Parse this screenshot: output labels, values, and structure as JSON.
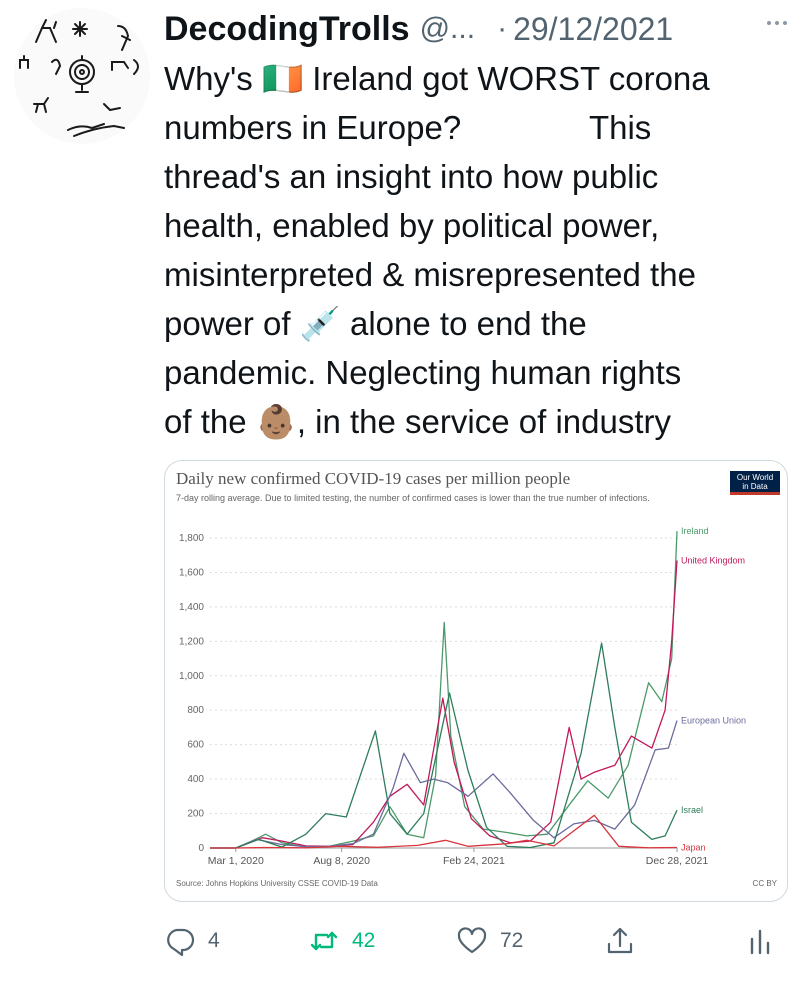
{
  "tweet": {
    "display_name": "DecodingTrolls",
    "handle": "@...",
    "separator": "·",
    "date": "29/12/2021",
    "text_lines": [
      "Why's 🇮🇪 Ireland got WORST corona",
      "numbers in Europe?              This",
      "thread's an insight into how public",
      "health, enabled by political power,",
      "misinterpreted & misrepresented the",
      "power of 💉 alone to end the",
      "pandemic. Neglecting human rights",
      "of the 👶🏽, in the service of industry"
    ]
  },
  "actions": {
    "reply_count": "4",
    "retweet_count": "42",
    "like_count": "72"
  },
  "icons": {
    "reply": "reply-icon",
    "retweet": "retweet-icon",
    "like": "heart-icon",
    "share": "share-icon",
    "analytics": "analytics-icon",
    "more": "more-icon"
  },
  "colors": {
    "text": "#0f1419",
    "muted": "#536471",
    "retweet_green": "#00ba7c"
  },
  "chart_data": {
    "type": "line",
    "title": "Daily new confirmed COVID-19 cases per million people",
    "subtitle": "7-day rolling average. Due to limited testing, the number of confirmed cases is lower than the true number of infections.",
    "source": "Source: Johns Hopkins University CSSE COVID-19 Data",
    "license": "CC BY",
    "logo_text": [
      "Our World",
      "in Data"
    ],
    "x_ticks": [
      "Mar 1, 2020",
      "Aug 8, 2020",
      "Feb 24, 2021",
      "Dec 28, 2021"
    ],
    "y_ticks": [
      "0",
      "200",
      "400",
      "600",
      "800",
      "1,000",
      "1,200",
      "1,400",
      "1,600",
      "1,800"
    ],
    "ylim": [
      0,
      1800
    ],
    "x_date_range": [
      "2020-01-22",
      "2021-12-28"
    ],
    "grid": true,
    "series": [
      {
        "name": "Ireland",
        "color": "#4c9a6a",
        "points": [
          [
            "2020-01-22",
            0
          ],
          [
            "2020-03-01",
            0
          ],
          [
            "2020-03-25",
            40
          ],
          [
            "2020-04-15",
            80
          ],
          [
            "2020-05-10",
            30
          ],
          [
            "2020-06-15",
            5
          ],
          [
            "2020-07-20",
            10
          ],
          [
            "2020-08-25",
            40
          ],
          [
            "2020-09-25",
            70
          ],
          [
            "2020-10-20",
            240
          ],
          [
            "2020-11-15",
            80
          ],
          [
            "2020-12-10",
            60
          ],
          [
            "2020-12-28",
            420
          ],
          [
            "2021-01-10",
            1310
          ],
          [
            "2021-01-20",
            650
          ],
          [
            "2021-02-10",
            240
          ],
          [
            "2021-03-10",
            110
          ],
          [
            "2021-04-15",
            90
          ],
          [
            "2021-05-15",
            70
          ],
          [
            "2021-06-15",
            80
          ],
          [
            "2021-07-20",
            260
          ],
          [
            "2021-08-15",
            390
          ],
          [
            "2021-09-15",
            290
          ],
          [
            "2021-10-15",
            480
          ],
          [
            "2021-11-15",
            960
          ],
          [
            "2021-12-05",
            850
          ],
          [
            "2021-12-20",
            1100
          ],
          [
            "2021-12-28",
            1840
          ]
        ]
      },
      {
        "name": "United Kingdom",
        "color": "#c2185b",
        "points": [
          [
            "2020-01-22",
            0
          ],
          [
            "2020-03-01",
            0
          ],
          [
            "2020-04-10",
            60
          ],
          [
            "2020-05-10",
            40
          ],
          [
            "2020-06-15",
            12
          ],
          [
            "2020-07-20",
            10
          ],
          [
            "2020-08-25",
            20
          ],
          [
            "2020-09-25",
            150
          ],
          [
            "2020-10-20",
            300
          ],
          [
            "2020-11-15",
            370
          ],
          [
            "2020-12-10",
            250
          ],
          [
            "2021-01-08",
            870
          ],
          [
            "2021-01-25",
            500
          ],
          [
            "2021-02-20",
            170
          ],
          [
            "2021-03-20",
            70
          ],
          [
            "2021-04-20",
            30
          ],
          [
            "2021-05-20",
            40
          ],
          [
            "2021-06-20",
            150
          ],
          [
            "2021-07-18",
            700
          ],
          [
            "2021-08-05",
            400
          ],
          [
            "2021-08-25",
            440
          ],
          [
            "2021-09-25",
            480
          ],
          [
            "2021-10-20",
            650
          ],
          [
            "2021-11-20",
            580
          ],
          [
            "2021-12-10",
            800
          ],
          [
            "2021-12-20",
            1200
          ],
          [
            "2021-12-28",
            1670
          ]
        ]
      },
      {
        "name": "European Union",
        "color": "#6b6b9e",
        "points": [
          [
            "2020-01-22",
            0
          ],
          [
            "2020-03-01",
            0
          ],
          [
            "2020-04-01",
            50
          ],
          [
            "2020-05-10",
            20
          ],
          [
            "2020-06-15",
            8
          ],
          [
            "2020-07-20",
            10
          ],
          [
            "2020-08-25",
            25
          ],
          [
            "2020-09-25",
            80
          ],
          [
            "2020-10-25",
            350
          ],
          [
            "2020-11-10",
            550
          ],
          [
            "2020-12-05",
            380
          ],
          [
            "2020-12-25",
            400
          ],
          [
            "2021-01-15",
            380
          ],
          [
            "2021-02-15",
            300
          ],
          [
            "2021-03-25",
            430
          ],
          [
            "2021-04-20",
            320
          ],
          [
            "2021-05-25",
            160
          ],
          [
            "2021-06-25",
            60
          ],
          [
            "2021-07-25",
            140
          ],
          [
            "2021-08-25",
            160
          ],
          [
            "2021-09-25",
            110
          ],
          [
            "2021-10-25",
            250
          ],
          [
            "2021-11-25",
            570
          ],
          [
            "2021-12-15",
            580
          ],
          [
            "2021-12-28",
            740
          ]
        ]
      },
      {
        "name": "Israel",
        "color": "#2e7d5b",
        "points": [
          [
            "2020-01-22",
            0
          ],
          [
            "2020-03-01",
            0
          ],
          [
            "2020-04-05",
            50
          ],
          [
            "2020-05-10",
            5
          ],
          [
            "2020-06-15",
            80
          ],
          [
            "2020-07-15",
            200
          ],
          [
            "2020-08-15",
            180
          ],
          [
            "2020-09-28",
            680
          ],
          [
            "2020-10-20",
            200
          ],
          [
            "2020-11-15",
            80
          ],
          [
            "2020-12-10",
            200
          ],
          [
            "2021-01-18",
            900
          ],
          [
            "2021-02-15",
            450
          ],
          [
            "2021-03-15",
            120
          ],
          [
            "2021-04-15",
            10
          ],
          [
            "2021-05-20",
            3
          ],
          [
            "2021-06-25",
            30
          ],
          [
            "2021-08-05",
            550
          ],
          [
            "2021-09-05",
            1190
          ],
          [
            "2021-09-25",
            700
          ],
          [
            "2021-10-20",
            150
          ],
          [
            "2021-11-20",
            50
          ],
          [
            "2021-12-10",
            70
          ],
          [
            "2021-12-28",
            220
          ]
        ]
      },
      {
        "name": "Japan",
        "color": "#d9363e",
        "points": [
          [
            "2020-01-22",
            0
          ],
          [
            "2020-03-01",
            0
          ],
          [
            "2020-04-15",
            3
          ],
          [
            "2020-06-15",
            1
          ],
          [
            "2020-08-05",
            10
          ],
          [
            "2020-10-01",
            4
          ],
          [
            "2020-12-01",
            15
          ],
          [
            "2021-01-12",
            45
          ],
          [
            "2021-02-15",
            10
          ],
          [
            "2021-04-15",
            25
          ],
          [
            "2021-05-15",
            45
          ],
          [
            "2021-06-25",
            12
          ],
          [
            "2021-08-25",
            190
          ],
          [
            "2021-10-01",
            10
          ],
          [
            "2021-11-15",
            1
          ],
          [
            "2021-12-28",
            3
          ]
        ]
      }
    ]
  }
}
